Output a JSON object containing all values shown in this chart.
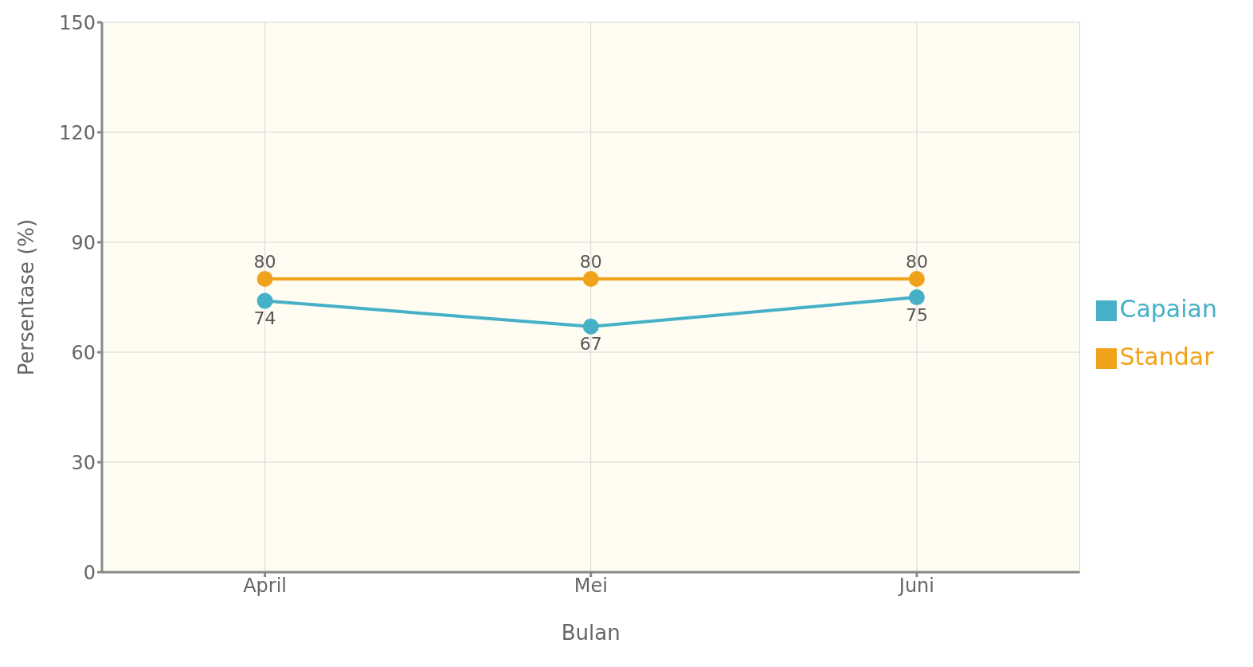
{
  "chart_data": {
    "type": "line",
    "xlabel": "Bulan",
    "ylabel": "Persentase (%)",
    "categories": [
      "April",
      "Mei",
      "Juni"
    ],
    "series": [
      {
        "name": "Capaian",
        "color": "#45b0c6",
        "values": [
          74,
          67,
          75
        ]
      },
      {
        "name": "Standar",
        "color": "#f0a21a",
        "values": [
          80,
          80,
          80
        ]
      }
    ],
    "ylim": [
      0,
      150
    ],
    "yticks": [
      0,
      30,
      60,
      90,
      120,
      150
    ],
    "grid": true,
    "legend": "right",
    "marker": "circle",
    "line_style": "solid",
    "data_labels": true
  }
}
